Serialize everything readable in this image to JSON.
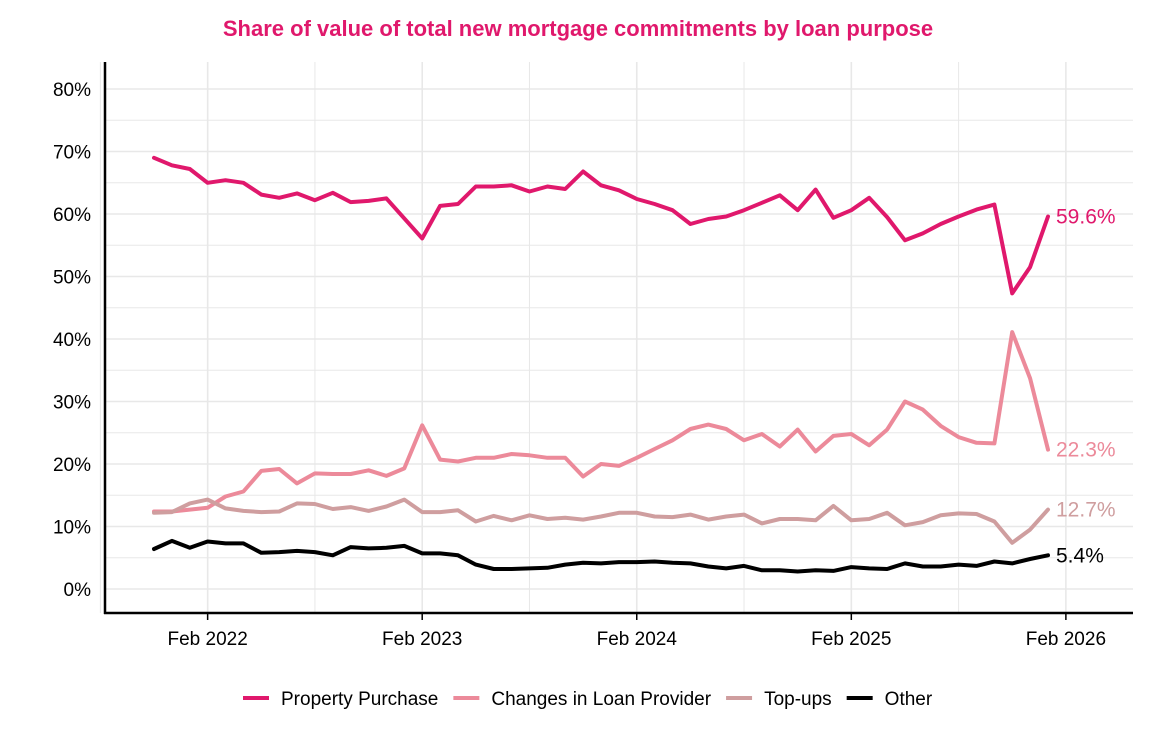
{
  "chart_data": {
    "type": "line",
    "title": "Share of value of total new mortgage commitments by loan purpose",
    "xlabel": "",
    "ylabel": "",
    "ylim": [
      0,
      80
    ],
    "y_ticks": [
      "0%",
      "10%",
      "20%",
      "30%",
      "40%",
      "50%",
      "60%",
      "70%",
      "80%"
    ],
    "x_ticks": [
      "Feb 2022",
      "Feb 2023",
      "Feb 2024",
      "Feb 2025",
      "Feb 2026"
    ],
    "x_start": "Nov 2021",
    "x_end": "Feb 2026",
    "grid": true,
    "legend_position": "bottom",
    "colors": {
      "title": "#e0186c",
      "axis": "#000000",
      "grid": "#e8e8e8"
    },
    "series": [
      {
        "name": "Property Purchase",
        "color": "#e0186c",
        "end_label": "59.6%",
        "values": [
          69.0,
          67.8,
          67.2,
          65.0,
          65.4,
          65.0,
          63.1,
          62.6,
          63.3,
          62.2,
          63.4,
          61.9,
          62.1,
          62.5,
          59.3,
          56.1,
          61.3,
          61.6,
          64.4,
          64.4,
          64.6,
          63.6,
          64.4,
          64.0,
          66.8,
          64.6,
          63.8,
          62.4,
          61.6,
          60.6,
          58.4,
          59.2,
          59.6,
          60.6,
          61.8,
          63.0,
          60.6,
          63.9,
          59.4,
          60.6,
          62.6,
          59.5,
          55.8,
          56.9,
          58.4,
          59.6,
          60.7,
          61.5,
          47.3,
          51.5,
          59.6
        ]
      },
      {
        "name": "Changes in Loan Provider",
        "color": "#ec8a9a",
        "end_label": "22.3%",
        "values": [
          12.4,
          12.4,
          12.7,
          13.0,
          14.8,
          15.6,
          18.9,
          19.2,
          16.9,
          18.5,
          18.4,
          18.4,
          19.0,
          18.1,
          19.3,
          26.2,
          20.7,
          20.4,
          21.0,
          21.0,
          21.6,
          21.4,
          21.0,
          21.0,
          18.0,
          20.0,
          19.7,
          21.0,
          22.4,
          23.8,
          25.6,
          26.3,
          25.6,
          23.8,
          24.8,
          22.8,
          25.5,
          22.0,
          24.5,
          24.8,
          23.0,
          25.5,
          30.0,
          28.7,
          26.1,
          24.3,
          23.4,
          23.3,
          41.1,
          33.7,
          22.3
        ]
      },
      {
        "name": "Top-ups",
        "color": "#cf9e9f",
        "end_label": "12.7%",
        "values": [
          12.2,
          12.3,
          13.7,
          14.3,
          12.9,
          12.5,
          12.3,
          12.4,
          13.7,
          13.6,
          12.8,
          13.1,
          12.5,
          13.2,
          14.3,
          12.3,
          12.3,
          12.6,
          10.8,
          11.7,
          11.0,
          11.8,
          11.2,
          11.4,
          11.1,
          11.6,
          12.2,
          12.2,
          11.6,
          11.5,
          11.9,
          11.1,
          11.6,
          11.9,
          10.5,
          11.2,
          11.2,
          11.0,
          13.3,
          11.0,
          11.2,
          12.2,
          10.2,
          10.7,
          11.8,
          12.1,
          12.0,
          10.8,
          7.4,
          9.5,
          12.7
        ]
      },
      {
        "name": "Other",
        "color": "#000000",
        "end_label": "5.4%",
        "values": [
          6.4,
          7.7,
          6.6,
          7.6,
          7.3,
          7.3,
          5.8,
          5.9,
          6.1,
          5.9,
          5.4,
          6.7,
          6.5,
          6.6,
          6.9,
          5.7,
          5.7,
          5.4,
          3.9,
          3.2,
          3.2,
          3.3,
          3.4,
          3.9,
          4.2,
          4.1,
          4.3,
          4.3,
          4.4,
          4.2,
          4.1,
          3.6,
          3.3,
          3.7,
          3.0,
          3.0,
          2.8,
          3.0,
          2.9,
          3.5,
          3.3,
          3.2,
          4.1,
          3.6,
          3.6,
          3.9,
          3.7,
          4.4,
          4.1,
          4.8,
          5.4
        ]
      }
    ]
  }
}
